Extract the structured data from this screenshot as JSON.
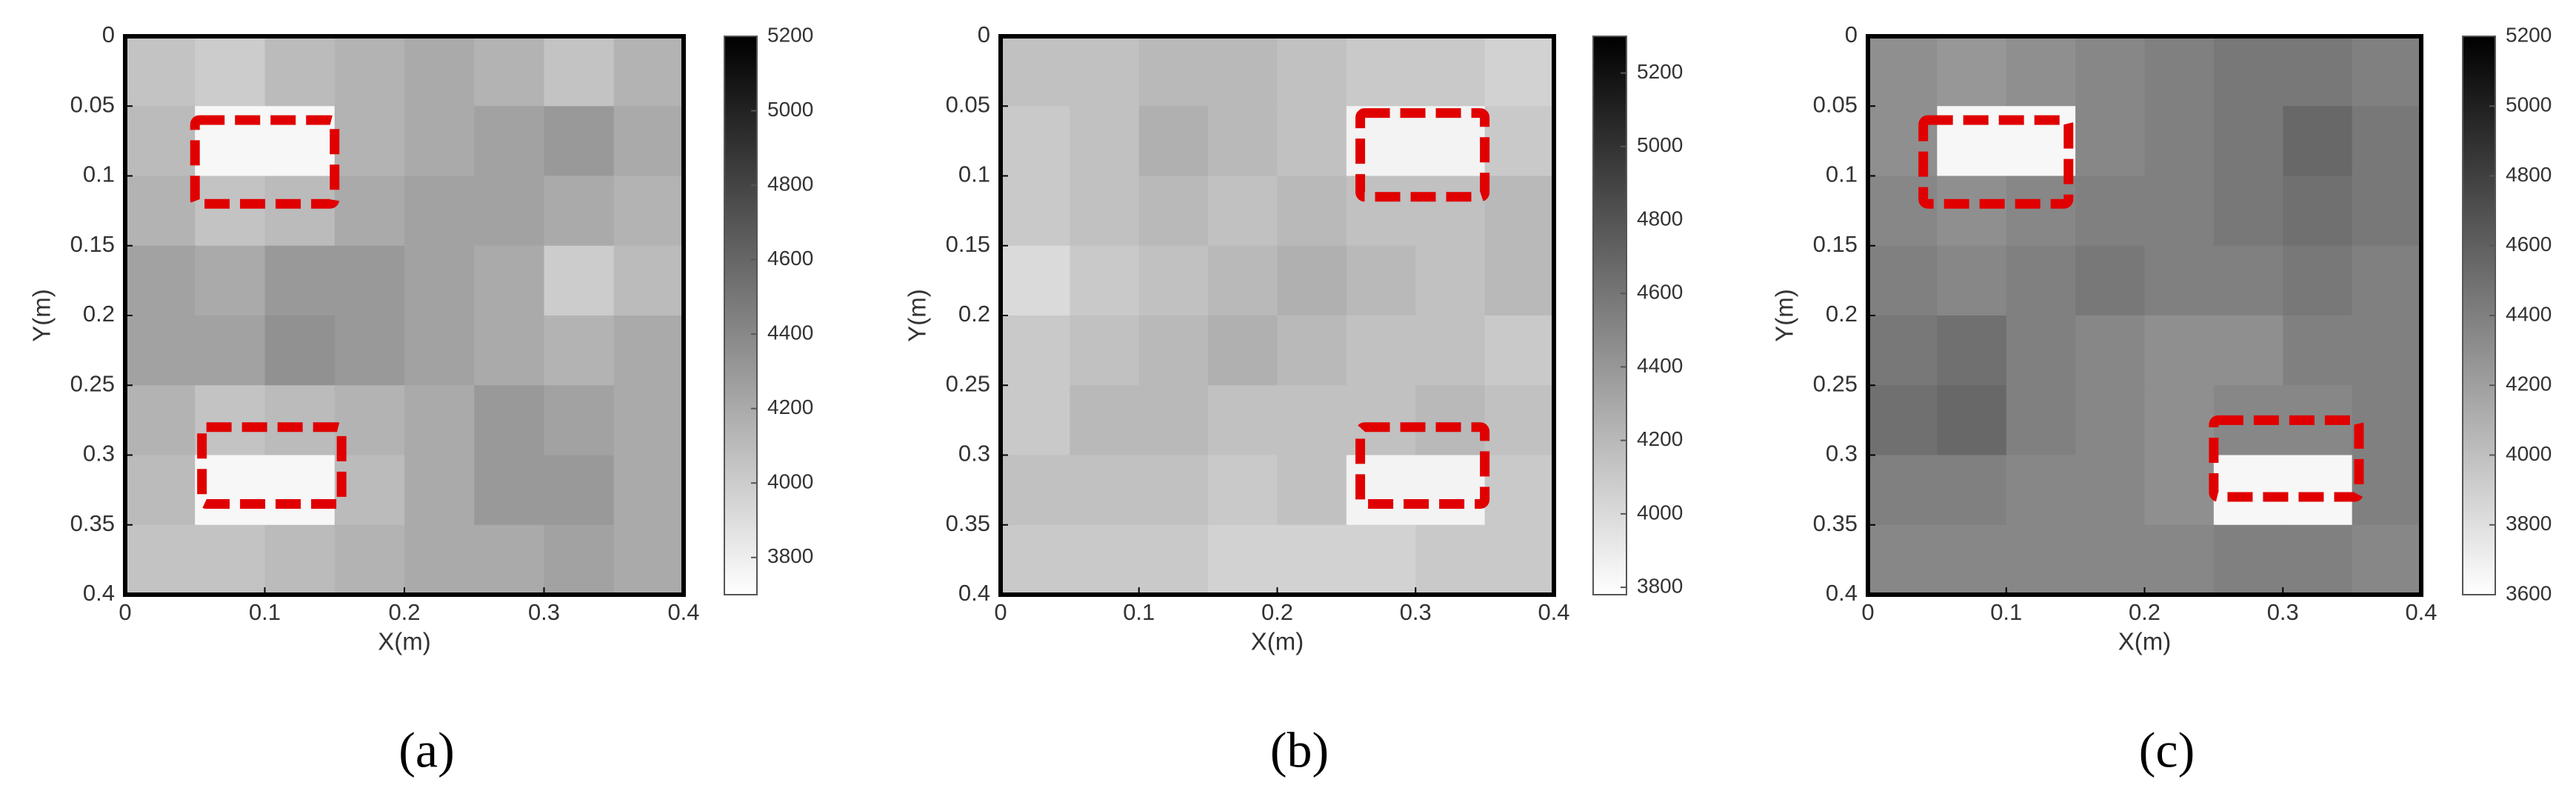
{
  "chart_data": [
    {
      "type": "heatmap",
      "panel_label": "(a)",
      "xlabel": "X(m)",
      "ylabel": "Y(m)",
      "xbins": [
        0,
        0.05,
        0.1,
        0.15,
        0.2,
        0.25,
        0.3,
        0.35,
        0.4
      ],
      "ybins": [
        0,
        0.05,
        0.1,
        0.15,
        0.2,
        0.25,
        0.3,
        0.35,
        0.4
      ],
      "values": [
        [
          4050,
          4000,
          4100,
          4150,
          4200,
          4150,
          4050,
          4150
        ],
        [
          4100,
          3750,
          3750,
          4150,
          4200,
          4250,
          4300,
          4200
        ],
        [
          4150,
          4050,
          4100,
          4200,
          4250,
          4250,
          4200,
          4150
        ],
        [
          4250,
          4200,
          4300,
          4300,
          4250,
          4200,
          4000,
          4100
        ],
        [
          4250,
          4250,
          4350,
          4300,
          4250,
          4200,
          4150,
          4200
        ],
        [
          4150,
          4050,
          4100,
          4150,
          4200,
          4300,
          4250,
          4200
        ],
        [
          4100,
          3750,
          3750,
          4100,
          4200,
          4300,
          4300,
          4200
        ],
        [
          4050,
          4050,
          4100,
          4150,
          4200,
          4200,
          4250,
          4200
        ]
      ],
      "xlim": [
        0,
        0.4
      ],
      "xticks": [
        0,
        0.1,
        0.2,
        0.3,
        0.4
      ],
      "ylim": [
        0,
        0.4
      ],
      "yticks": [
        0,
        0.05,
        0.1,
        0.15,
        0.2,
        0.25,
        0.3,
        0.35,
        0.4
      ],
      "clim": [
        3700,
        5200
      ],
      "cticks": [
        3800,
        4000,
        4200,
        4400,
        4600,
        4800,
        5000,
        5200
      ],
      "highlight_color": "#e00000",
      "highlights": [
        {
          "x": [
            0.05,
            0.15
          ],
          "y": [
            0.06,
            0.12
          ]
        },
        {
          "x": [
            0.055,
            0.155
          ],
          "y": [
            0.28,
            0.335
          ]
        }
      ]
    },
    {
      "type": "heatmap",
      "panel_label": "(b)",
      "xlabel": "X(m)",
      "ylabel": "Y(m)",
      "xbins": [
        0,
        0.05,
        0.1,
        0.15,
        0.2,
        0.25,
        0.3,
        0.35,
        0.4
      ],
      "ybins": [
        0,
        0.05,
        0.1,
        0.15,
        0.2,
        0.25,
        0.3,
        0.35,
        0.4
      ],
      "values": [
        [
          4150,
          4150,
          4200,
          4200,
          4150,
          4100,
          4100,
          4050
        ],
        [
          4100,
          4150,
          4250,
          4200,
          4150,
          3850,
          3850,
          4100
        ],
        [
          4100,
          4150,
          4200,
          4150,
          4200,
          4150,
          4150,
          4200
        ],
        [
          4000,
          4100,
          4150,
          4200,
          4250,
          4200,
          4150,
          4200
        ],
        [
          4100,
          4150,
          4200,
          4250,
          4200,
          4150,
          4150,
          4100
        ],
        [
          4100,
          4200,
          4200,
          4150,
          4150,
          4150,
          4200,
          4150
        ],
        [
          4150,
          4150,
          4150,
          4100,
          4150,
          3850,
          3850,
          4100
        ],
        [
          4100,
          4100,
          4100,
          4050,
          4050,
          4050,
          4100,
          4100
        ]
      ],
      "xlim": [
        0,
        0.4
      ],
      "xticks": [
        0,
        0.1,
        0.2,
        0.3,
        0.4
      ],
      "ylim": [
        0,
        0.4
      ],
      "yticks": [
        0,
        0.05,
        0.1,
        0.15,
        0.2,
        0.25,
        0.3,
        0.35,
        0.4
      ],
      "clim": [
        3780,
        5300
      ],
      "cticks": [
        3800,
        4000,
        4200,
        4400,
        4600,
        4800,
        5000,
        5200
      ],
      "highlight_color": "#e00000",
      "highlights": [
        {
          "x": [
            0.26,
            0.35
          ],
          "y": [
            0.055,
            0.115
          ]
        },
        {
          "x": [
            0.26,
            0.35
          ],
          "y": [
            0.28,
            0.335
          ]
        }
      ]
    },
    {
      "type": "heatmap",
      "panel_label": "(c)",
      "xlabel": "X(m)",
      "ylabel": "Y(m)",
      "xbins": [
        0,
        0.05,
        0.1,
        0.15,
        0.2,
        0.25,
        0.3,
        0.35,
        0.4
      ],
      "ybins": [
        0,
        0.05,
        0.1,
        0.15,
        0.2,
        0.25,
        0.3,
        0.35,
        0.4
      ],
      "values": [
        [
          4300,
          4250,
          4300,
          4350,
          4400,
          4450,
          4450,
          4400
        ],
        [
          4300,
          3650,
          3650,
          4350,
          4400,
          4450,
          4550,
          4450
        ],
        [
          4350,
          4300,
          4350,
          4400,
          4400,
          4450,
          4500,
          4450
        ],
        [
          4400,
          4350,
          4400,
          4450,
          4400,
          4400,
          4450,
          4400
        ],
        [
          4450,
          4500,
          4400,
          4350,
          4300,
          4300,
          4400,
          4400
        ],
        [
          4500,
          4550,
          4400,
          4350,
          4300,
          4350,
          4350,
          4400
        ],
        [
          4400,
          4400,
          4350,
          4350,
          4300,
          3650,
          3650,
          4400
        ],
        [
          4350,
          4350,
          4350,
          4350,
          4350,
          4400,
          4400,
          4350
        ]
      ],
      "xlim": [
        0,
        0.4
      ],
      "xticks": [
        0,
        0.1,
        0.2,
        0.3,
        0.4
      ],
      "ylim": [
        0,
        0.4
      ],
      "yticks": [
        0,
        0.05,
        0.1,
        0.15,
        0.2,
        0.25,
        0.3,
        0.35,
        0.4
      ],
      "clim": [
        3600,
        5200
      ],
      "cticks": [
        3600,
        3800,
        4000,
        4200,
        4400,
        4600,
        4800,
        5000,
        5200
      ],
      "highlight_color": "#e00000",
      "highlights": [
        {
          "x": [
            0.04,
            0.145
          ],
          "y": [
            0.06,
            0.12
          ]
        },
        {
          "x": [
            0.25,
            0.355
          ],
          "y": [
            0.275,
            0.33
          ]
        }
      ]
    }
  ]
}
